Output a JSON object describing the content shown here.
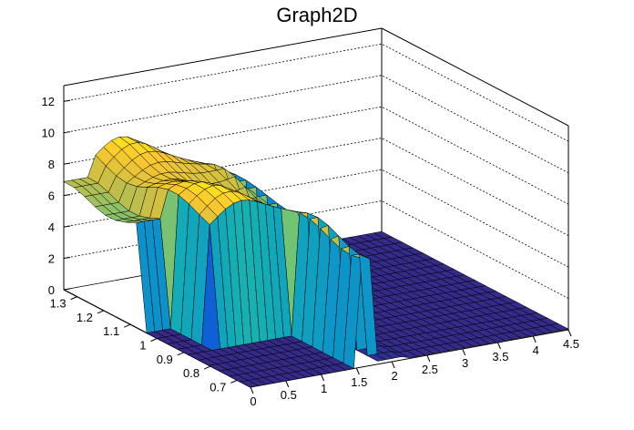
{
  "title": "Graph2D",
  "chart_data": {
    "type": "surface",
    "title": "Graph2D",
    "xlabel": "",
    "ylabel": "",
    "zlabel": "",
    "x_ticks": [
      "0",
      "0.5",
      "1",
      "1.5",
      "2",
      "2.5",
      "3",
      "3.5",
      "4",
      "4.5"
    ],
    "y_ticks": [
      "0.7",
      "0.8",
      "0.9",
      "1",
      "1.1",
      "1.2",
      "1.3"
    ],
    "z_ticks": [
      "0",
      "2",
      "4",
      "6",
      "8",
      "10",
      "12"
    ],
    "xlim": [
      0,
      4.5
    ],
    "ylim": [
      0.65,
      1.35
    ],
    "zlim": [
      0,
      13
    ],
    "palette": "kBird (blue to yellow)",
    "grid": true,
    "surface_regions": [
      {
        "description": "flat plateau",
        "x_range": [
          0.0,
          0.45
        ],
        "y_range": [
          1.05,
          1.35
        ],
        "z": 6.5
      },
      {
        "description": "high ridge",
        "x_range": [
          0.45,
          1.7
        ],
        "y_range": [
          0.65,
          1.35
        ],
        "z_range": [
          7.0,
          9.0
        ]
      },
      {
        "description": "valley / empty",
        "x_range": [
          0.0,
          1.6
        ],
        "y_range": [
          0.65,
          0.9
        ],
        "z": 0
      },
      {
        "description": "shelf",
        "x_range": [
          1.7,
          2.2
        ],
        "y_range": [
          0.9,
          1.35
        ],
        "z": 6.0
      },
      {
        "description": "floor",
        "x_range": [
          2.2,
          4.5
        ],
        "y_range": [
          0.65,
          1.35
        ],
        "z": 0
      }
    ]
  }
}
